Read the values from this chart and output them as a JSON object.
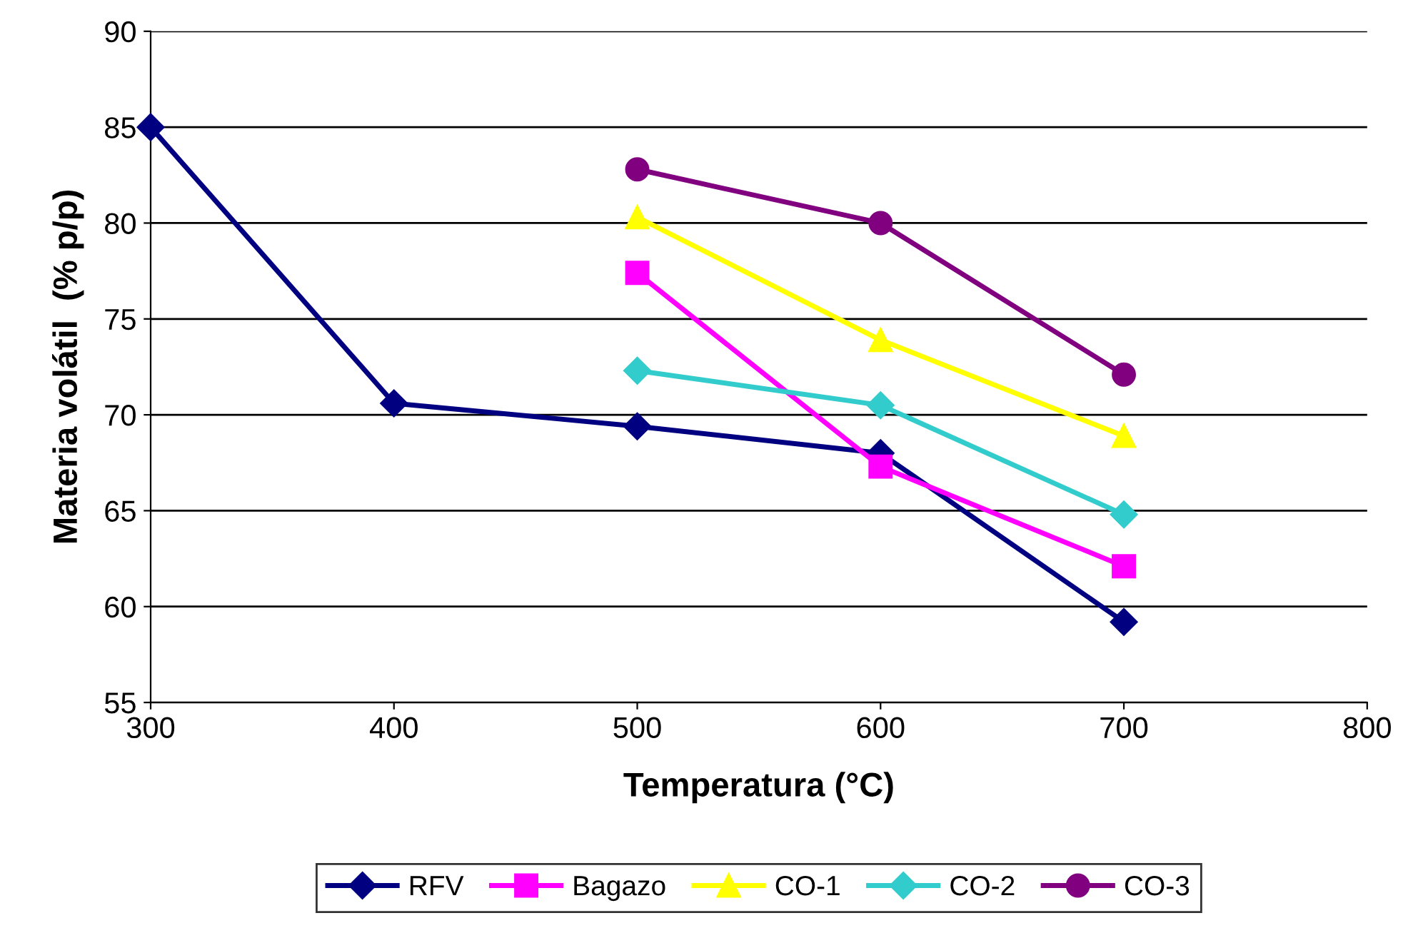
{
  "chart_data": {
    "type": "line",
    "xlabel": "Temperatura (°C)",
    "ylabel": "Materia volátil  (% p/p)",
    "xlim": [
      300,
      800
    ],
    "xticks": [
      300,
      400,
      500,
      600,
      700,
      800
    ],
    "ylim": [
      55,
      90
    ],
    "yticks": [
      55,
      60,
      65,
      70,
      75,
      80,
      85,
      90
    ],
    "grid": "y",
    "legend": "bottom",
    "series": [
      {
        "name": "RFV",
        "color": "#000080",
        "marker": "diamond",
        "x": [
          300,
          400,
          500,
          600,
          700
        ],
        "values": [
          85,
          70.6,
          69.4,
          68.0,
          59.2
        ]
      },
      {
        "name": "Bagazo",
        "color": "#ff00ff",
        "marker": "square",
        "x": [
          500,
          600,
          700
        ],
        "values": [
          77.4,
          67.3,
          62.1
        ]
      },
      {
        "name": "CO-1",
        "color": "#ffff00",
        "marker": "triangle",
        "x": [
          500,
          600,
          700
        ],
        "values": [
          80.3,
          73.9,
          68.9
        ]
      },
      {
        "name": "CO-2",
        "color": "#33cccc",
        "marker": "diamond",
        "x": [
          500,
          600,
          700
        ],
        "values": [
          72.3,
          70.5,
          64.8
        ]
      },
      {
        "name": "CO-3",
        "color": "#800080",
        "marker": "circle",
        "x": [
          500,
          600,
          700
        ],
        "values": [
          82.8,
          80.0,
          72.1
        ]
      }
    ]
  }
}
